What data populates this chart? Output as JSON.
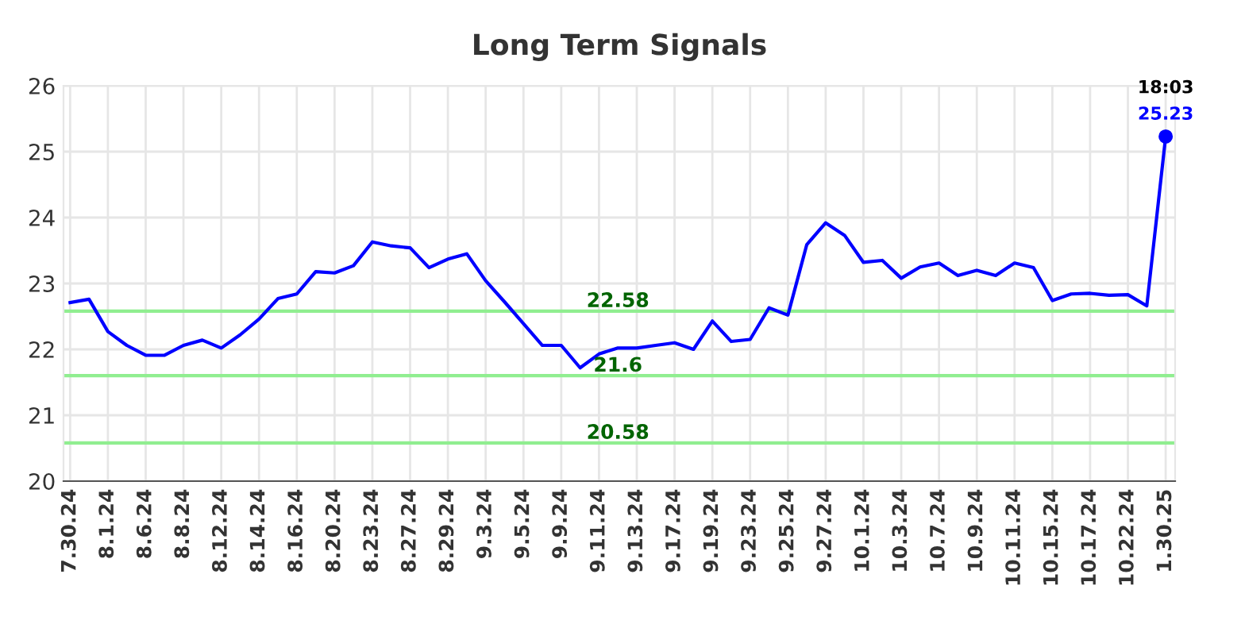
{
  "chart_data": {
    "type": "line",
    "title": "Long Term Signals",
    "categories": [
      "7.30.24",
      null,
      "8.1.24",
      null,
      "8.6.24",
      null,
      "8.8.24",
      null,
      "8.12.24",
      null,
      "8.14.24",
      null,
      "8.16.24",
      null,
      "8.20.24",
      null,
      "8.23.24",
      null,
      "8.27.24",
      null,
      "8.29.24",
      null,
      "9.3.24",
      null,
      "9.5.24",
      null,
      "9.9.24",
      null,
      "9.11.24",
      null,
      "9.13.24",
      null,
      "9.17.24",
      null,
      "9.19.24",
      null,
      "9.23.24",
      null,
      "9.25.24",
      null,
      "9.27.24",
      null,
      "10.1.24",
      null,
      "10.3.24",
      null,
      "10.7.24",
      null,
      "10.9.24",
      null,
      "10.11.24",
      null,
      "10.15.24",
      null,
      "10.17.24",
      null,
      "10.22.24",
      null,
      "1.30.25"
    ],
    "series": [
      {
        "color": "#0000ff",
        "values": [
          22.71,
          22.76,
          22.27,
          22.06,
          21.91,
          21.91,
          22.06,
          22.14,
          22.02,
          22.22,
          22.46,
          22.77,
          22.84,
          23.18,
          23.16,
          23.27,
          23.63,
          23.57,
          23.54,
          23.24,
          23.37,
          23.45,
          23.04,
          22.72,
          22.39,
          22.06,
          22.06,
          21.72,
          21.93,
          22.02,
          22.02,
          22.06,
          22.1,
          22.0,
          22.43,
          22.12,
          22.15,
          22.63,
          22.52,
          23.59,
          23.92,
          23.73,
          23.32,
          23.35,
          23.08,
          23.25,
          23.31,
          23.12,
          23.2,
          23.12,
          23.31,
          23.24,
          22.74,
          22.84,
          22.85,
          22.82,
          22.83,
          22.66,
          25.23
        ]
      },
      {
        "type": "scatter",
        "color": "#0000ff",
        "marker": "circle",
        "x": [
          "1.30.25"
        ],
        "values": [
          25.23
        ],
        "value_labels": [
          "25.23"
        ]
      }
    ],
    "ylim": [
      20,
      26
    ],
    "yticks": [
      20,
      21,
      22,
      23,
      24,
      25,
      26
    ],
    "ref_lines": [
      {
        "axis": "y",
        "value": 22.58,
        "label": "22.58",
        "color": "#90ee90"
      },
      {
        "axis": "y",
        "value": 21.6,
        "label": "21.6",
        "color": "#90ee90"
      },
      {
        "axis": "y",
        "value": 20.58,
        "label": "20.58",
        "color": "#90ee90"
      }
    ],
    "annotations": [
      {
        "text": "18:03",
        "x": "1.30.25",
        "y": 25.23
      }
    ],
    "grid": true
  }
}
